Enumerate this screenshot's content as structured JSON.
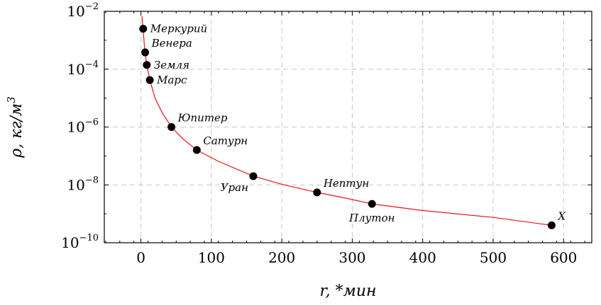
{
  "chart_data": {
    "type": "scatter",
    "x_axis": {
      "label": "r, *мин",
      "ticks": [
        0,
        100,
        200,
        300,
        400,
        500,
        600
      ],
      "range": [
        -52,
        640
      ]
    },
    "y_axis": {
      "label": "ρ, кг/м",
      "label_exponent": "3",
      "scale": "log",
      "ticks": [
        {
          "value": 0.01,
          "base": "10",
          "exponent": "−2"
        },
        {
          "value": 0.0001,
          "base": "10",
          "exponent": "−4"
        },
        {
          "value": 1e-06,
          "base": "10",
          "exponent": "−6"
        },
        {
          "value": 1e-08,
          "base": "10",
          "exponent": "−8"
        },
        {
          "value": 1e-10,
          "base": "10",
          "exponent": "−10"
        }
      ],
      "range": [
        1e-10,
        0.01
      ]
    },
    "grid": true,
    "curve_color": "#e8141c",
    "marker_color": "#000000",
    "points": [
      {
        "label": "Меркурий",
        "x": 3.2,
        "y": 0.0025,
        "label_pos": "right"
      },
      {
        "label": "Венера",
        "x": 6.0,
        "y": 0.00038,
        "label_pos": "upper-right"
      },
      {
        "label": "Земля",
        "x": 8.3,
        "y": 0.00014,
        "label_pos": "right"
      },
      {
        "label": "Марс",
        "x": 12.6,
        "y": 4.2e-05,
        "label_pos": "right"
      },
      {
        "label": "Юпитер",
        "x": 43.3,
        "y": 1e-06,
        "label_pos": "upper-right"
      },
      {
        "label": "Сатурн",
        "x": 79.3,
        "y": 1.6e-07,
        "label_pos": "upper-right"
      },
      {
        "label": "Уран",
        "x": 159.5,
        "y": 2e-08,
        "label_pos": "lower-left"
      },
      {
        "label": "Нептун",
        "x": 250.0,
        "y": 5.5e-09,
        "label_pos": "upper-right"
      },
      {
        "label": "Плутон",
        "x": 328.0,
        "y": 2.2e-09,
        "label_pos": "below"
      },
      {
        "label": "X",
        "x": 583.0,
        "y": 4e-10,
        "label_pos": "upper-right"
      }
    ],
    "curve": [
      [
        1.5,
        0.0068
      ],
      [
        2.5,
        0.0034
      ],
      [
        3.2,
        0.0025
      ],
      [
        4.5,
        0.00085
      ],
      [
        6.0,
        0.00038
      ],
      [
        8.3,
        0.00014
      ],
      [
        12.6,
        4.2e-05
      ],
      [
        20,
        1e-05
      ],
      [
        30,
        3.2e-06
      ],
      [
        43.3,
        1e-06
      ],
      [
        60,
        3.8e-07
      ],
      [
        79.3,
        1.6e-07
      ],
      [
        110,
        6.5e-08
      ],
      [
        159.5,
        2e-08
      ],
      [
        200,
        1.05e-08
      ],
      [
        250,
        5.5e-09
      ],
      [
        290,
        3.5e-09
      ],
      [
        328,
        2.2e-09
      ],
      [
        400,
        1.3e-09
      ],
      [
        500,
        7.5e-10
      ],
      [
        583,
        4e-10
      ]
    ]
  }
}
